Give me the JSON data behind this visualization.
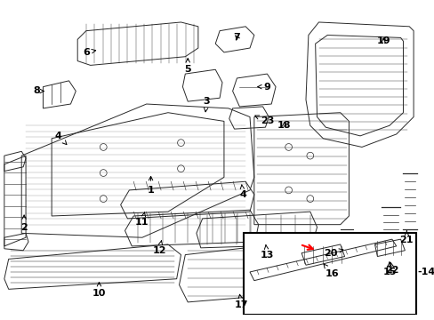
{
  "bg_color": "#ffffff",
  "figsize": [
    4.89,
    3.6
  ],
  "dpi": 100,
  "image_b64": ""
}
